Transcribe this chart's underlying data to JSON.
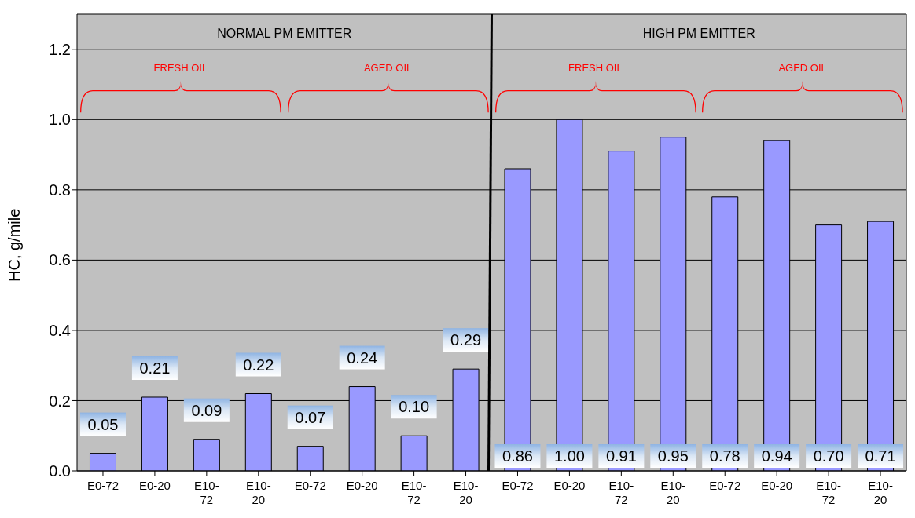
{
  "chart_data": {
    "type": "bar",
    "ylabel": "HC, g/mile",
    "categories": [
      "E0-72",
      "E0-20",
      "E10-72",
      "E10-20",
      "E0-72",
      "E0-20",
      "E10-72",
      "E10-20",
      "E0-72",
      "E0-20",
      "E10-72",
      "E10-20",
      "E0-72",
      "E0-20",
      "E10-72",
      "E10-20"
    ],
    "values": [
      0.05,
      0.21,
      0.09,
      0.22,
      0.07,
      0.24,
      0.1,
      0.29,
      0.86,
      1.0,
      0.91,
      0.95,
      0.78,
      0.94,
      0.7,
      0.71
    ],
    "value_labels": [
      "0.05",
      "0.21",
      "0.09",
      "0.22",
      "0.07",
      "0.24",
      "0.10",
      "0.29",
      "0.86",
      "1.00",
      "0.91",
      "0.95",
      "0.78",
      "0.94",
      "0.70",
      "0.71"
    ],
    "color": "#9999ff",
    "ylim": [
      0,
      1.3
    ],
    "yticks": [
      {
        "value": 0,
        "label": "0.0"
      },
      {
        "value": 0.2,
        "label": "0.2"
      },
      {
        "value": 0.4,
        "label": "0.4"
      },
      {
        "value": 0.6,
        "label": "0.6"
      },
      {
        "value": 0.8,
        "label": "0.8"
      },
      {
        "value": 1.0,
        "label": "1.0"
      },
      {
        "value": 1.2,
        "label": "1.2"
      }
    ],
    "grid": "y",
    "annotations": [
      "NORMAL  PM EMITTER",
      "HIGH PM EMITTER",
      "FRESH OIL",
      "AGED OIL",
      "FRESH OIL",
      "AGED OIL"
    ]
  }
}
